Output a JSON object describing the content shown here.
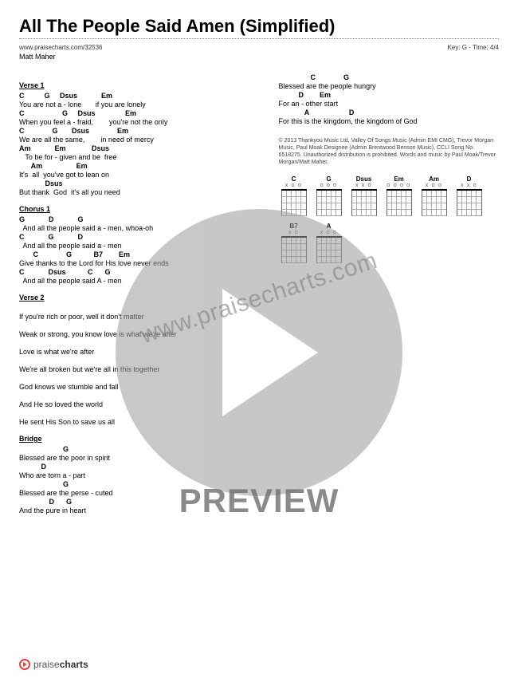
{
  "header": {
    "title": "All The People Said Amen (Simplified)",
    "url": "www.praisecharts.com/32536",
    "key_time": "Key: G · Time: 4/4",
    "artist": "Matt Maher"
  },
  "sections_left": [
    {
      "title": "Verse 1",
      "lines": [
        {
          "chords": "C          G     Dsus            Em",
          "lyrics": "You are not a - lone       if you are lonely"
        },
        {
          "chords": "C                   G     Dsus               Em",
          "lyrics": "When you feel a - fraid,        you're not the only"
        },
        {
          "chords": "C              G       Dsus              Em",
          "lyrics": "We are all the same,        in need of mercy"
        },
        {
          "chords": "Am            Em             Dsus",
          "lyrics": "   To be for - given and be  free"
        },
        {
          "chords": "      Am                 Em",
          "lyrics": "It's  all  you've got to lean on"
        },
        {
          "chords": "             Dsus",
          "lyrics": "But thank  God  it's all you need"
        }
      ]
    },
    {
      "title": "Chorus 1",
      "lines": [
        {
          "chords": "G            D            G",
          "lyrics": "  And all the people said a - men, whoa-oh"
        },
        {
          "chords": "C            G            D",
          "lyrics": "  And all the people said a - men"
        },
        {
          "chords": "       C              G           B7        Em",
          "lyrics": "Give thanks to the Lord for His love never ends"
        },
        {
          "chords": "C            Dsus           C      G",
          "lyrics": "  And all the people said A - men"
        }
      ]
    },
    {
      "title": "Verse 2",
      "lines": [
        {
          "chords": "",
          "lyrics": "If you're rich or poor, well it don't matter"
        },
        {
          "chords": "",
          "lyrics": "Weak or strong, you know love is what we're after"
        },
        {
          "chords": "",
          "lyrics": "Love is what we're after"
        },
        {
          "chords": "",
          "lyrics": "We're all broken but we're all in this together"
        },
        {
          "chords": "",
          "lyrics": "God knows we stumble and fall"
        },
        {
          "chords": "",
          "lyrics": "And He so loved the world"
        },
        {
          "chords": "",
          "lyrics": "He sent His Son to save us all"
        }
      ]
    },
    {
      "title": "Bridge",
      "lines": [
        {
          "chords": "                      G",
          "lyrics": "Blessed are the poor in spirit"
        },
        {
          "chords": "           D",
          "lyrics": "Who are torn a - part"
        },
        {
          "chords": "                      G",
          "lyrics": "Blessed are the perse - cuted"
        },
        {
          "chords": "               D      G",
          "lyrics": "And the pure in heart"
        }
      ]
    }
  ],
  "sections_right": [
    {
      "title": "",
      "lines": [
        {
          "chords": "                C              G",
          "lyrics": "Blessed are the people hungry"
        },
        {
          "chords": "          D        Em",
          "lyrics": "For an - other start"
        },
        {
          "chords": "             A                    D",
          "lyrics": "For this is the kingdom, the kingdom of God"
        }
      ]
    }
  ],
  "copyright": "© 2013 Thankyou Music Ltd, Valley Of Songs Music (Admin EMI CMG), Trevor Morgan Music, Paul Moak Designee (Admin Brentwood Benson Music). CCLI Song No. 6518275. Unauthorized distribution is prohibited. Words and music by Paul Moak/Trevor Morgan/Matt Maher.",
  "chord_diagrams": [
    {
      "name": "C",
      "fingers": "X   O O"
    },
    {
      "name": "G",
      "fingers": "  O O O"
    },
    {
      "name": "Dsus",
      "fingers": "X X O"
    },
    {
      "name": "Em",
      "fingers": "O   O O O"
    },
    {
      "name": "Am",
      "fingers": "X O   O"
    },
    {
      "name": "D",
      "fingers": "X X O"
    },
    {
      "name": "B7",
      "fingers": "X   O"
    },
    {
      "name": "A",
      "fingers": "X O   O"
    }
  ],
  "footer": {
    "brand_prefix": "praise",
    "brand_suffix": "charts"
  },
  "watermark": {
    "url": "www.praisecharts.com",
    "preview": "PREVIEW"
  },
  "colors": {
    "accent": "#d44",
    "overlay_gray": "#9a9a9a",
    "text": "#000000",
    "background": "#ffffff"
  }
}
